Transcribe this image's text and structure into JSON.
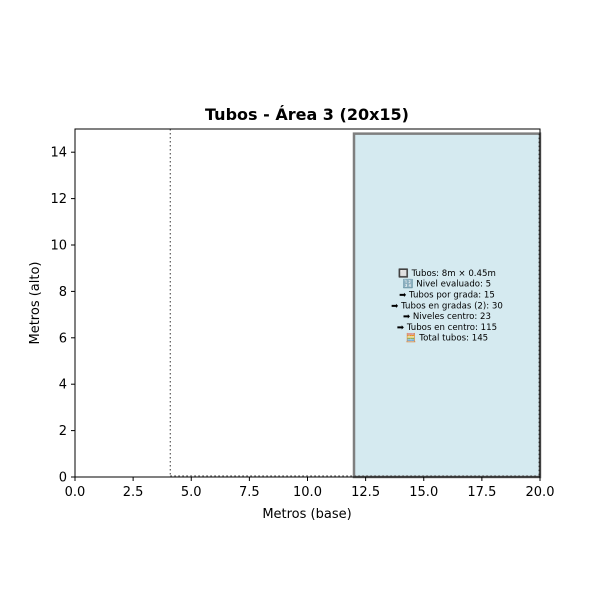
{
  "chart_data": {
    "type": "area",
    "title": "Tubos - Área 3 (20x15)",
    "xlabel": "Metros (base)",
    "ylabel": "Metros (alto)",
    "xlim": [
      0,
      20
    ],
    "ylim": [
      0,
      15
    ],
    "xticks": [
      "0.0",
      "2.5",
      "5.0",
      "7.5",
      "10.0",
      "12.5",
      "15.0",
      "17.5",
      "20.0"
    ],
    "yticks": [
      "0",
      "2",
      "4",
      "6",
      "8",
      "10",
      "12",
      "14"
    ],
    "grid": false,
    "legend": "none",
    "guides": {
      "vertical_line_x": 4.1,
      "baseline_y": 0.05,
      "baseline_x_range": [
        4.1,
        20
      ]
    },
    "filled_region": {
      "x_range": [
        12,
        20
      ],
      "y_range": [
        0,
        14.8
      ],
      "fill_color": "#d5eaf0",
      "edge_color": "#7f7f7f"
    },
    "info_box": {
      "center": [
        16,
        7.4
      ],
      "lines": [
        "🔲 Tubos: 8m × 0.45m",
        "🔢 Nivel evaluado: 5",
        "➡ Tubos por grada: 15",
        "➡ Tubos en gradas (2): 30",
        "➡ Niveles centro: 23",
        "➡ Tubos en centro: 115",
        "🧮 Total tubos: 145"
      ]
    }
  }
}
